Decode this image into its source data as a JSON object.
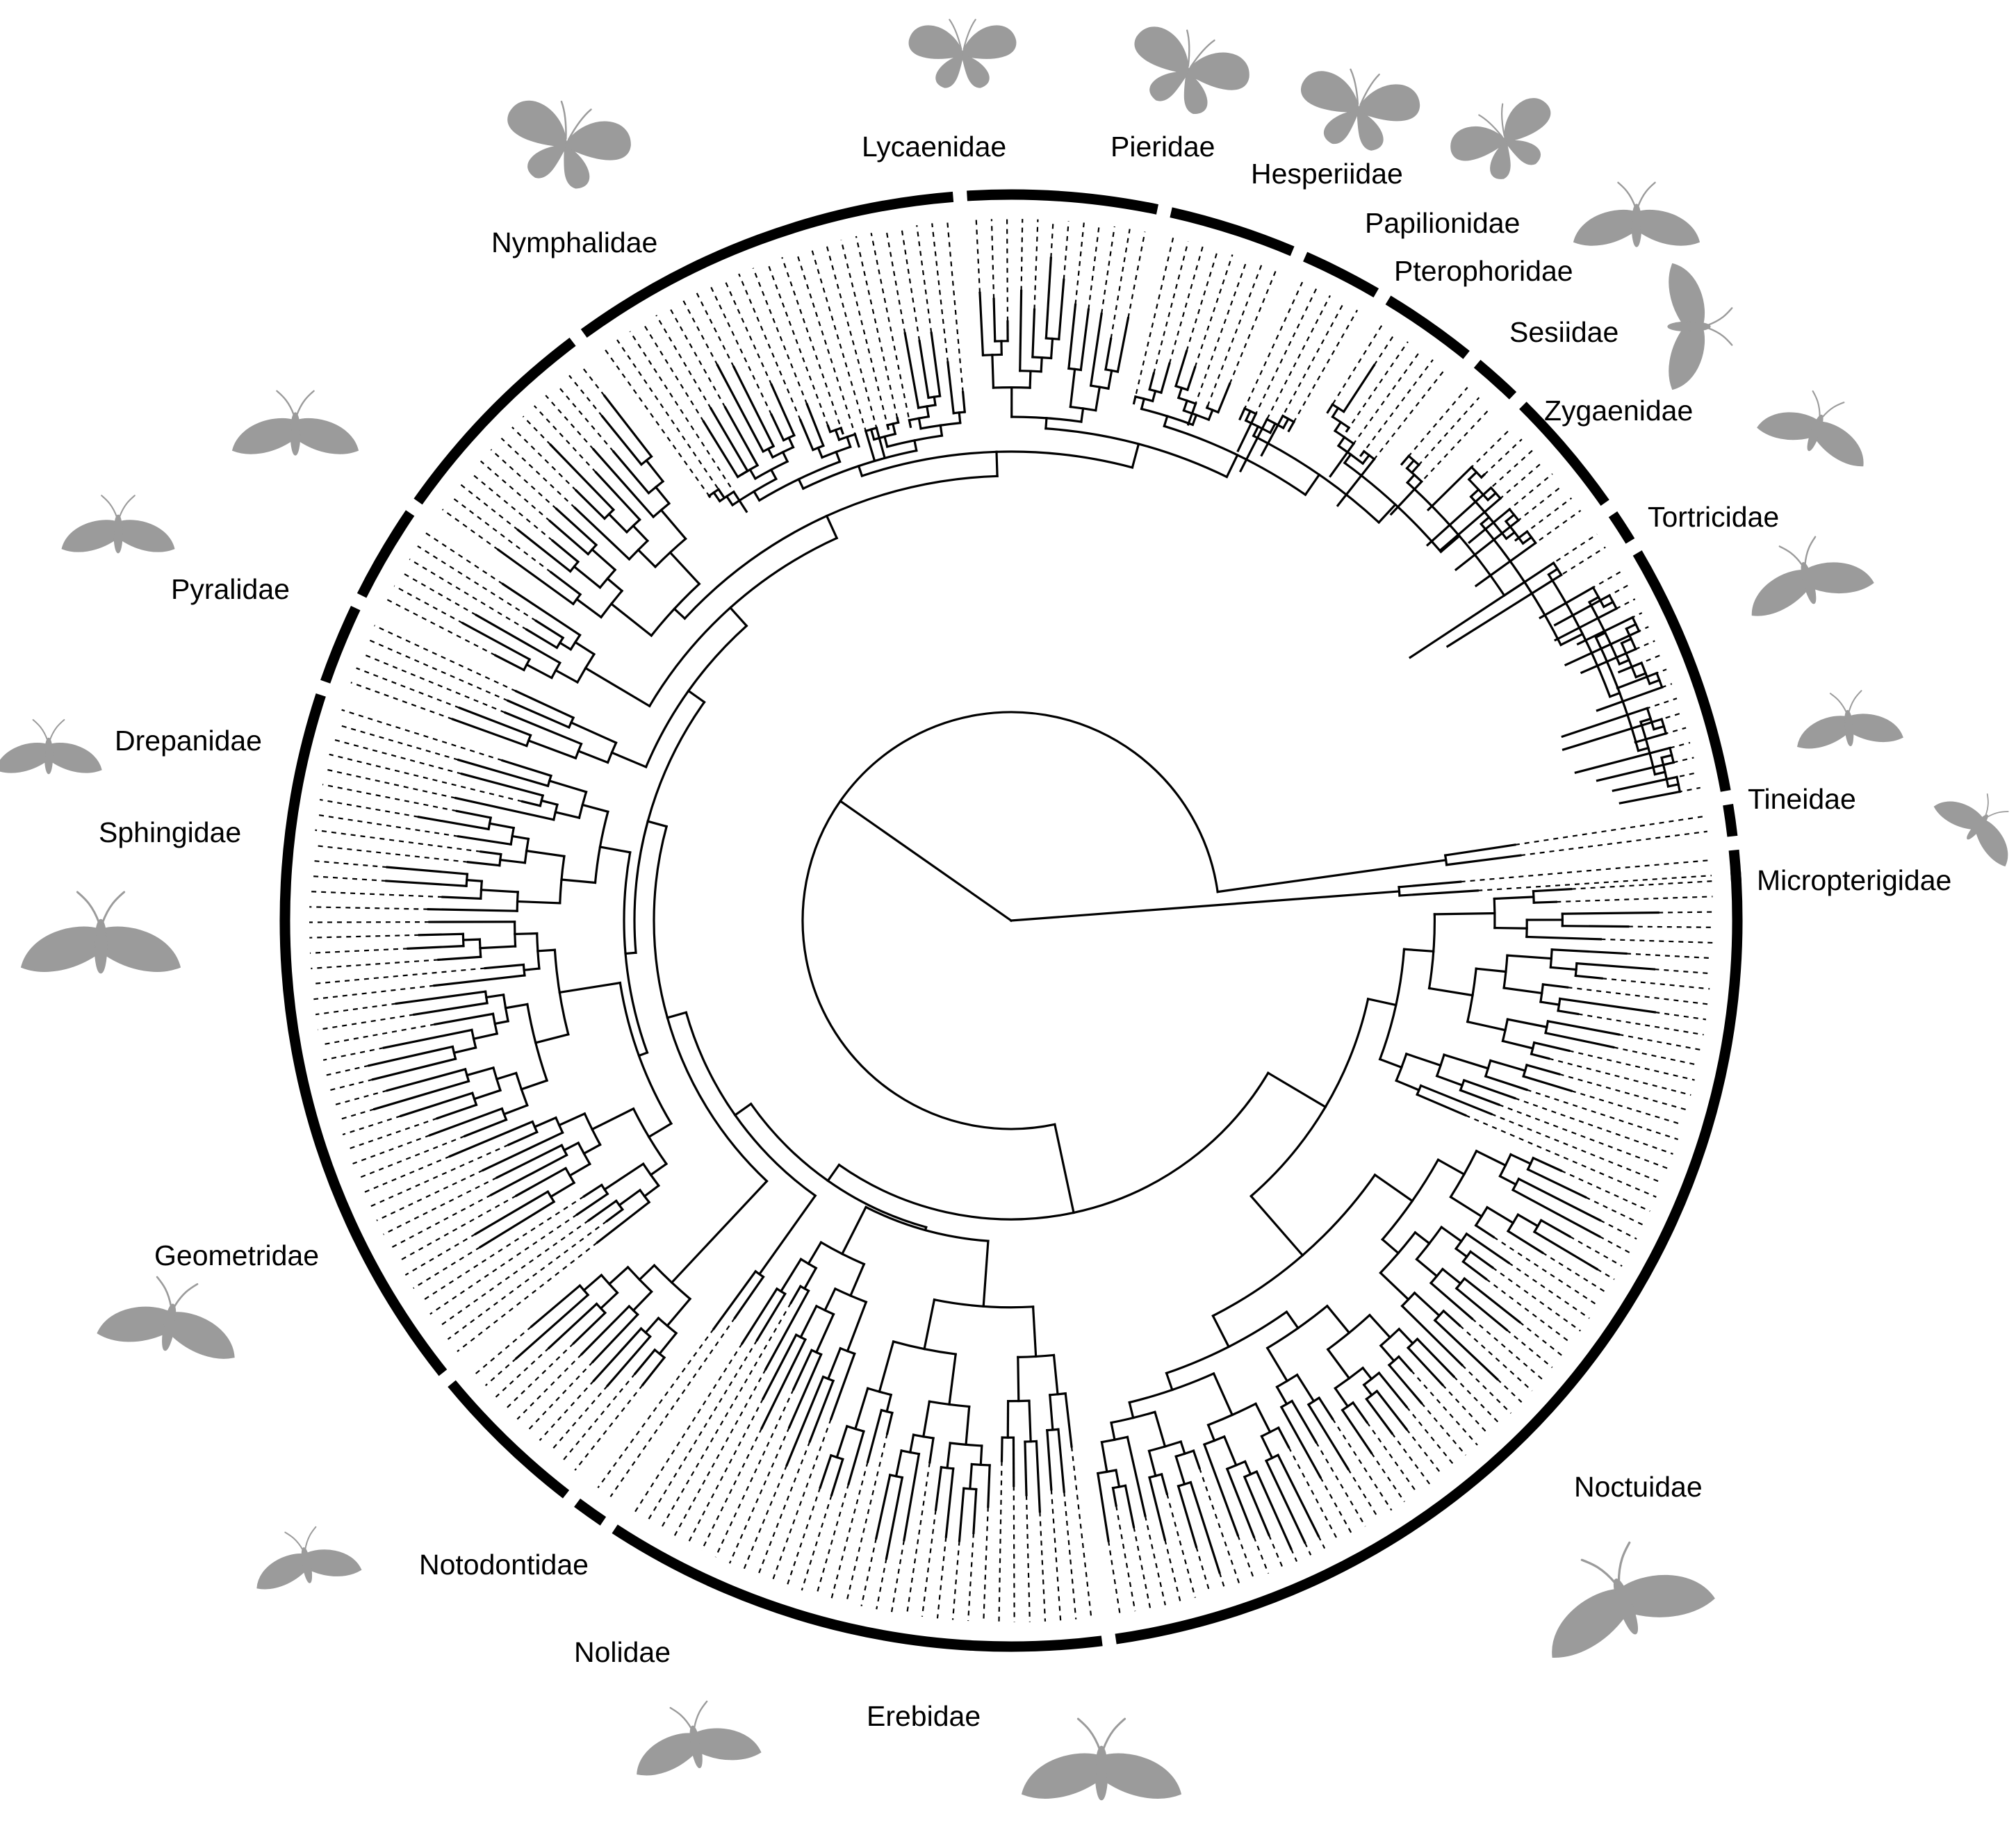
{
  "figure": {
    "families": [
      {
        "id": "micropterigidae",
        "label": "Micropterigidae",
        "tips": 2
      },
      {
        "id": "tineidae",
        "label": "Tineidae",
        "tips": 2
      },
      {
        "id": "tortricidae",
        "label": "Tortricidae",
        "tips": 16
      },
      {
        "id": "zygaenidae",
        "label": "Zygaenidae",
        "tips": 2
      },
      {
        "id": "sesiidae",
        "label": "Sesiidae",
        "tips": 8
      },
      {
        "id": "pterophoridae",
        "label": "Pterophoridae",
        "tips": 3
      },
      {
        "id": "papilionidae",
        "label": "Papilionidae",
        "tips": 6
      },
      {
        "id": "hesperiidae",
        "label": "Hesperiidae",
        "tips": 5
      },
      {
        "id": "pieridae",
        "label": "Pieridae",
        "tips": 8
      },
      {
        "id": "lycaenidae",
        "label": "Lycaenidae",
        "tips": 12
      },
      {
        "id": "nymphalidae",
        "label": "Nymphalidae",
        "tips": 25
      },
      {
        "id": "pyralidae",
        "label": "Pyralidae",
        "tips": 14
      },
      {
        "id": "drepanidae",
        "label": "Drepanidae",
        "tips": 6
      },
      {
        "id": "sphingidae",
        "label": "Sphingidae",
        "tips": 5
      },
      {
        "id": "geometridae",
        "label": "Geometridae",
        "tips": 45
      },
      {
        "id": "notodontidae",
        "label": "Notodontidae",
        "tips": 10
      },
      {
        "id": "nolidae",
        "label": "Nolidae",
        "tips": 2
      },
      {
        "id": "erebidae",
        "label": "Erebidae",
        "tips": 32
      },
      {
        "id": "noctuidae",
        "label": "Noctuidae",
        "tips": 68
      }
    ],
    "colors": {
      "tree": "#000000",
      "silhouette": "#9b9b9b",
      "background": "#ffffff"
    },
    "icons": [
      "moth-silhouette-icon",
      "butterfly-silhouette-icon"
    ]
  }
}
